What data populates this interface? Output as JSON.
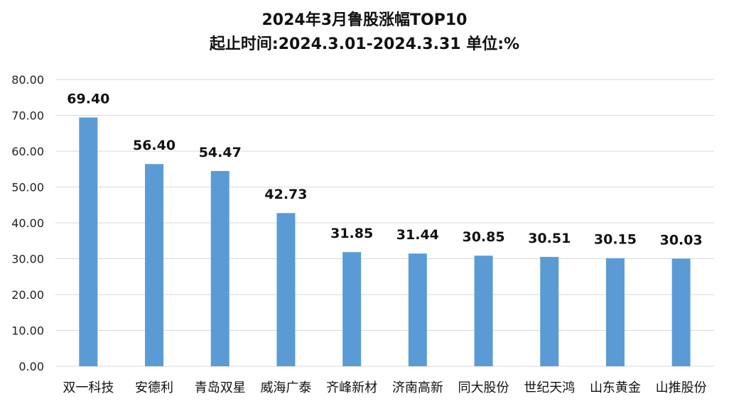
{
  "chart_data": {
    "type": "bar",
    "title": "2024年3月鲁股涨幅TOP10",
    "subtitle": "起止时间:2024.3.01-2024.3.31    单位:%",
    "categories": [
      "双一科技",
      "安德利",
      "青岛双星",
      "威海广泰",
      "齐峰新材",
      "济南高新",
      "同大股份",
      "世纪天鸿",
      "山东黄金",
      "山推股份"
    ],
    "values": [
      69.4,
      56.4,
      54.47,
      42.73,
      31.85,
      31.44,
      30.85,
      30.51,
      30.15,
      30.03
    ],
    "value_labels": [
      "69.40",
      "56.40",
      "54.47",
      "42.73",
      "31.85",
      "31.44",
      "30.85",
      "30.51",
      "30.15",
      "30.03"
    ],
    "ylim": [
      0,
      80
    ],
    "yticks": [
      "0.00",
      "10.00",
      "20.00",
      "30.00",
      "40.00",
      "50.00",
      "60.00",
      "70.00",
      "80.00"
    ],
    "ytick_values": [
      0,
      10,
      20,
      30,
      40,
      50,
      60,
      70,
      80
    ],
    "grid": true,
    "bar_color": "#5B9BD5",
    "grid_color": "#D9D9D9"
  }
}
